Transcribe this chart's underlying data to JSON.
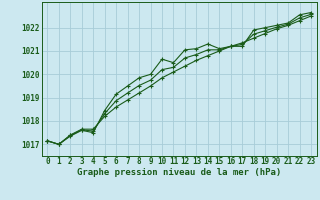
{
  "xlabel": "Graphe pression niveau de la mer (hPa)",
  "bg_color": "#cce8f0",
  "grid_color": "#a8ccd8",
  "line_color": "#1a5c1a",
  "ylim": [
    1016.5,
    1023.1
  ],
  "xlim": [
    -0.5,
    23.5
  ],
  "yticks": [
    1017,
    1018,
    1019,
    1020,
    1021,
    1022
  ],
  "xticks": [
    0,
    1,
    2,
    3,
    4,
    5,
    6,
    7,
    8,
    9,
    10,
    11,
    12,
    13,
    14,
    15,
    16,
    17,
    18,
    19,
    20,
    21,
    22,
    23
  ],
  "series1": [
    1017.15,
    1017.0,
    1017.35,
    1017.6,
    1017.5,
    1018.45,
    1019.15,
    1019.5,
    1019.85,
    1020.0,
    1020.65,
    1020.5,
    1021.05,
    1021.1,
    1021.3,
    1021.1,
    1021.2,
    1021.2,
    1021.9,
    1022.0,
    1022.1,
    1022.2,
    1022.55,
    1022.65
  ],
  "series2": [
    1017.15,
    1017.0,
    1017.4,
    1017.65,
    1017.65,
    1018.2,
    1018.6,
    1018.9,
    1019.2,
    1019.5,
    1019.85,
    1020.1,
    1020.35,
    1020.6,
    1020.8,
    1021.0,
    1021.2,
    1021.35,
    1021.55,
    1021.75,
    1021.95,
    1022.1,
    1022.3,
    1022.5
  ],
  "series3": [
    1017.15,
    1017.0,
    1017.38,
    1017.62,
    1017.57,
    1018.32,
    1018.87,
    1019.2,
    1019.52,
    1019.75,
    1020.2,
    1020.3,
    1020.7,
    1020.85,
    1021.05,
    1021.05,
    1021.2,
    1021.28,
    1021.72,
    1021.87,
    1022.02,
    1022.15,
    1022.42,
    1022.57
  ],
  "tick_fontsize": 5.5,
  "xlabel_fontsize": 6.5,
  "marker_size": 2.5,
  "line_width": 0.8
}
